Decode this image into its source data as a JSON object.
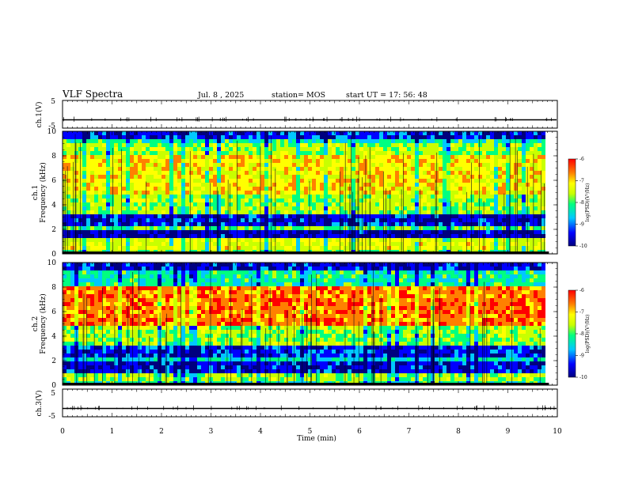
{
  "header": {
    "title": "VLF Spectra",
    "date": "Jul. 8 , 2025",
    "station": "station= MOS",
    "start": "start UT = 17: 56: 48"
  },
  "chart_data": [
    {
      "type": "line",
      "id": "ch1_waveform",
      "ylabel": "ch.1(V)",
      "ylim": [
        -5,
        5
      ],
      "yticks": [
        5,
        -5
      ],
      "xlim": [
        0,
        10
      ],
      "baseline": -2,
      "note": "near-constant trace with small sparse spikes"
    },
    {
      "type": "heatmap",
      "id": "ch1_spectrogram",
      "ylabel": "ch.1 Frequency (kHz)",
      "ylim": [
        0,
        10
      ],
      "yticks": [
        0,
        2,
        4,
        6,
        8,
        10
      ],
      "xlim": [
        0,
        9.83
      ],
      "peak_band_khz": [
        5,
        8
      ],
      "colorbar": {
        "label": "log(PSD)(V²/Hz)",
        "range": [
          -10,
          -6
        ],
        "ticks": [
          "-6",
          "-7",
          "-8",
          "-9",
          "-10"
        ]
      }
    },
    {
      "type": "heatmap",
      "id": "ch2_spectrogram",
      "ylabel": "ch.2 Frequency (kHz)",
      "ylim": [
        0,
        10
      ],
      "yticks": [
        0,
        2,
        4,
        6,
        8,
        10
      ],
      "xlim": [
        0,
        9.83
      ],
      "peak_band_khz": [
        5,
        8
      ],
      "colorbar": {
        "label": "log(PSD)(V²/Hz)",
        "range": [
          -10,
          -6
        ],
        "ticks": [
          "-6",
          "-7",
          "-8",
          "-9",
          "-10"
        ]
      }
    },
    {
      "type": "line",
      "id": "ch3_waveform",
      "ylabel": "ch.3(V)",
      "ylim": [
        -5,
        5
      ],
      "yticks": [
        5,
        -5
      ],
      "xlim": [
        0,
        10
      ],
      "baseline": -2,
      "note": "near-constant trace with small sparse spikes"
    }
  ],
  "xaxis": {
    "label": "Time (min)",
    "ticks": [
      "0",
      "1",
      "2",
      "3",
      "4",
      "5",
      "6",
      "7",
      "8",
      "9",
      "10"
    ]
  },
  "colors": {
    "scale": [
      "#00007f",
      "#0000ff",
      "#00c8ff",
      "#00ff80",
      "#c8ff00",
      "#ffff00",
      "#ff8000",
      "#ff0000"
    ]
  }
}
